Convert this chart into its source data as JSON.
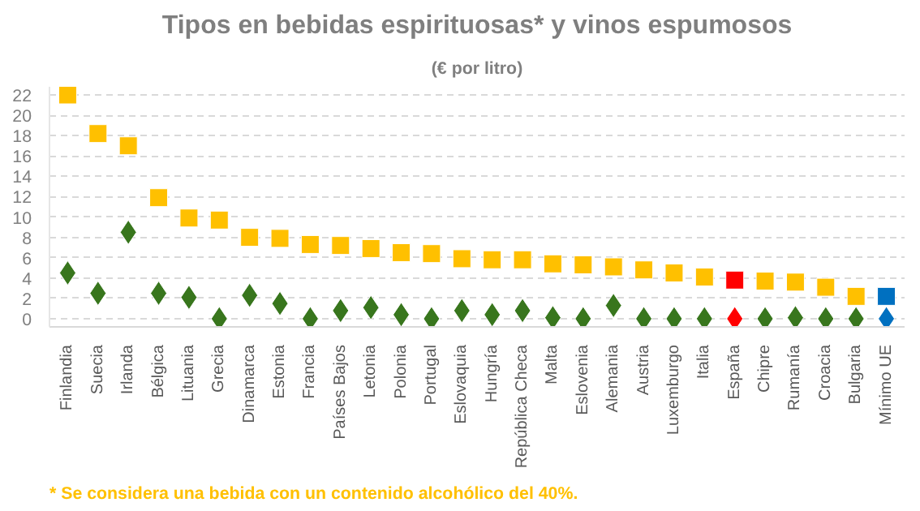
{
  "chart_data": {
    "type": "scatter",
    "title": "Tipos en bebidas espirituosas* y vinos espumosos",
    "subtitle": "(€ por litro)",
    "categories": [
      "Finlandia",
      "Suecia",
      "Irlanda",
      "Bélgica",
      "Lituania",
      "Grecia",
      "Dinamarca",
      "Estonia",
      "Francia",
      "Países Bajos",
      "Letonia",
      "Polonia",
      "Portugal",
      "Eslovaquia",
      "Hungría",
      "República Checa",
      "Malta",
      "Eslovenia",
      "Alemania",
      "Austria",
      "Luxemburgo",
      "Italia",
      "España",
      "Chipre",
      "Rumanía",
      "Croacia",
      "Bulgaria",
      "Mínimo UE"
    ],
    "series": [
      {
        "marker": "square",
        "colors": [
          "#ffc000",
          "#ffc000",
          "#ffc000",
          "#ffc000",
          "#ffc000",
          "#ffc000",
          "#ffc000",
          "#ffc000",
          "#ffc000",
          "#ffc000",
          "#ffc000",
          "#ffc000",
          "#ffc000",
          "#ffc000",
          "#ffc000",
          "#ffc000",
          "#ffc000",
          "#ffc000",
          "#ffc000",
          "#ffc000",
          "#ffc000",
          "#ffc000",
          "#ff0000",
          "#ffc000",
          "#ffc000",
          "#ffc000",
          "#ffc000",
          "#0070c0"
        ],
        "values": [
          22.0,
          18.2,
          17.0,
          11.9,
          9.9,
          9.7,
          8.0,
          7.9,
          7.3,
          7.2,
          6.9,
          6.5,
          6.4,
          5.9,
          5.8,
          5.8,
          5.4,
          5.3,
          5.1,
          4.8,
          4.5,
          4.1,
          3.8,
          3.7,
          3.6,
          3.1,
          2.2,
          2.2
        ]
      },
      {
        "marker": "diamond",
        "colors": [
          "#38761d",
          "#38761d",
          "#38761d",
          "#38761d",
          "#38761d",
          "#38761d",
          "#38761d",
          "#38761d",
          "#38761d",
          "#38761d",
          "#38761d",
          "#38761d",
          "#38761d",
          "#38761d",
          "#38761d",
          "#38761d",
          "#38761d",
          "#38761d",
          "#38761d",
          "#38761d",
          "#38761d",
          "#38761d",
          "#ff0000",
          "#38761d",
          "#38761d",
          "#38761d",
          "#38761d",
          "#0070c0"
        ],
        "values": [
          4.5,
          2.5,
          8.5,
          2.5,
          2.1,
          0.0,
          2.3,
          1.5,
          0.0,
          0.8,
          1.1,
          0.4,
          0.0,
          0.8,
          0.4,
          0.8,
          0.1,
          0.0,
          1.3,
          0.0,
          0.0,
          0.0,
          0.0,
          0.0,
          0.1,
          0.0,
          0.0,
          0.0
        ]
      }
    ],
    "ylim": [
      -0.8,
      22.8
    ],
    "yticks": [
      0,
      2,
      4,
      6,
      8,
      10,
      12,
      14,
      16,
      18,
      20,
      22
    ],
    "grid": "y",
    "annotations": [
      "* Se considera  una bebida con un contenido alcohólico del 40%."
    ]
  }
}
